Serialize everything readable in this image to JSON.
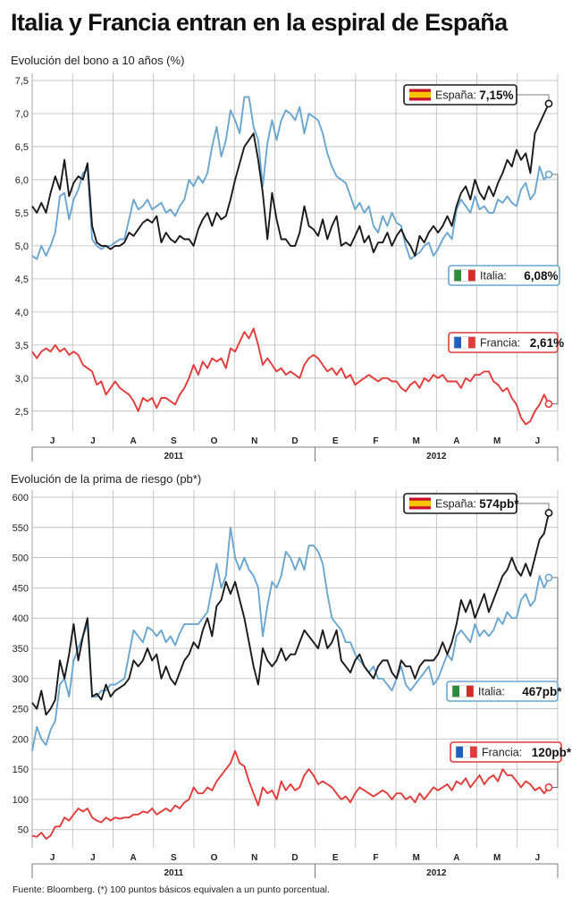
{
  "header": {
    "title": "Italia y Francia entran en la espiral de España"
  },
  "source_note": "Fuente: Bloomberg. (*) 100 puntos básicos equivalen a un punto porcentual.",
  "colors": {
    "espana": "#1a1a1a",
    "italia": "#6aa6cf",
    "francia": "#e23b3b",
    "grid": "#b9b9b9",
    "flag_spain_red": "#c8102e",
    "flag_spain_yellow": "#f6c400",
    "flag_italy_green": "#2e8b3e",
    "flag_italy_red": "#d62b2b",
    "flag_france_blue": "#1f5fbf",
    "flag_france_red": "#e23b3b"
  },
  "chart_data": [
    {
      "id": "bond",
      "type": "line",
      "title": "Evolución del bono a 10 años (%)",
      "ylim": [
        2.2,
        7.5
      ],
      "yticks": [
        "7,5",
        "7,0",
        "6,5",
        "6,0",
        "5,5",
        "5,0",
        "4,5",
        "4,0",
        "3,5",
        "3,0",
        "2,5"
      ],
      "ytick_values": [
        7.5,
        7.0,
        6.5,
        6.0,
        5.5,
        5.0,
        4.5,
        4.0,
        3.5,
        3.0,
        2.5
      ],
      "month_labels": [
        "J",
        "J",
        "A",
        "S",
        "O",
        "N",
        "D",
        "E",
        "F",
        "M",
        "A",
        "M",
        "J"
      ],
      "year_labels": [
        "2011",
        "2012"
      ],
      "grid": true,
      "series": [
        {
          "name": "España",
          "end_label": "7,15%",
          "flag": "spain",
          "legend_position": "top-right",
          "values": [
            5.6,
            5.5,
            5.65,
            5.5,
            5.8,
            6.05,
            5.85,
            6.3,
            5.75,
            5.95,
            6.05,
            6.0,
            6.25,
            5.3,
            5.05,
            5.0,
            5.0,
            4.95,
            5.0,
            5.0,
            5.05,
            5.2,
            5.15,
            5.25,
            5.35,
            5.4,
            5.35,
            5.45,
            5.05,
            5.2,
            5.1,
            5.05,
            5.15,
            5.1,
            5.1,
            5.0,
            5.25,
            5.4,
            5.5,
            5.3,
            5.5,
            5.4,
            5.45,
            5.7,
            6.0,
            6.25,
            6.5,
            6.6,
            6.7,
            6.3,
            5.8,
            5.1,
            5.8,
            5.4,
            5.1,
            5.1,
            5.0,
            5.0,
            5.2,
            5.6,
            5.3,
            5.25,
            5.15,
            5.4,
            5.1,
            5.3,
            5.45,
            5.0,
            5.05,
            5.0,
            5.15,
            5.3,
            5.05,
            5.15,
            4.9,
            5.05,
            5.05,
            5.2,
            5.0,
            5.15,
            5.25,
            5.1,
            5.0,
            4.85,
            5.15,
            5.05,
            5.2,
            5.3,
            5.2,
            5.3,
            5.45,
            5.3,
            5.6,
            5.8,
            5.9,
            5.7,
            6.0,
            5.8,
            5.7,
            5.9,
            5.75,
            5.95,
            6.1,
            6.3,
            6.2,
            6.45,
            6.3,
            6.4,
            6.1,
            6.7,
            6.85,
            7.0,
            7.15
          ]
        },
        {
          "name": "Italia",
          "end_label": "6,08%",
          "flag": "italy",
          "legend_position": "right",
          "values": [
            4.85,
            4.8,
            5.0,
            4.85,
            5.0,
            5.2,
            5.75,
            5.8,
            5.4,
            5.7,
            5.85,
            6.1,
            6.15,
            5.1,
            5.0,
            4.95,
            5.0,
            5.0,
            5.05,
            5.1,
            5.1,
            5.4,
            5.7,
            5.55,
            5.6,
            5.7,
            5.55,
            5.6,
            5.65,
            5.5,
            5.55,
            5.45,
            5.6,
            5.7,
            6.0,
            5.9,
            6.05,
            5.95,
            6.1,
            6.5,
            6.8,
            6.35,
            6.6,
            7.05,
            6.9,
            6.7,
            7.25,
            7.25,
            6.8,
            6.6,
            5.9,
            6.55,
            6.9,
            6.6,
            6.9,
            7.05,
            7.0,
            6.9,
            7.1,
            6.7,
            7.0,
            6.95,
            6.9,
            6.7,
            6.4,
            6.2,
            6.05,
            6.0,
            5.95,
            5.75,
            5.55,
            5.65,
            5.5,
            5.6,
            5.3,
            5.2,
            5.45,
            5.3,
            5.5,
            5.35,
            5.3,
            5.0,
            4.8,
            4.85,
            4.9,
            5.0,
            5.05,
            4.85,
            4.95,
            5.1,
            5.2,
            5.1,
            5.55,
            5.7,
            5.6,
            5.5,
            5.75,
            5.55,
            5.6,
            5.5,
            5.5,
            5.7,
            5.65,
            5.75,
            5.65,
            5.6,
            5.85,
            5.95,
            5.7,
            5.8,
            6.2,
            6.0,
            6.08
          ]
        },
        {
          "name": "Francia",
          "end_label": "2,61%",
          "flag": "france",
          "legend_position": "right",
          "values": [
            3.4,
            3.3,
            3.4,
            3.45,
            3.4,
            3.5,
            3.4,
            3.45,
            3.35,
            3.4,
            3.35,
            3.2,
            3.15,
            3.1,
            2.9,
            2.95,
            2.75,
            2.85,
            2.95,
            2.85,
            2.8,
            2.75,
            2.65,
            2.5,
            2.7,
            2.65,
            2.7,
            2.55,
            2.7,
            2.7,
            2.65,
            2.6,
            2.75,
            2.85,
            3.0,
            3.2,
            3.05,
            3.25,
            3.15,
            3.3,
            3.25,
            3.3,
            3.15,
            3.45,
            3.4,
            3.55,
            3.7,
            3.6,
            3.75,
            3.5,
            3.2,
            3.3,
            3.2,
            3.1,
            3.15,
            3.05,
            3.1,
            3.05,
            3.0,
            3.2,
            3.3,
            3.35,
            3.3,
            3.2,
            3.1,
            3.15,
            3.05,
            3.15,
            3.0,
            3.05,
            2.9,
            2.95,
            3.0,
            3.05,
            3.0,
            2.95,
            3.0,
            3.0,
            2.95,
            2.95,
            2.85,
            2.8,
            2.9,
            2.95,
            2.85,
            3.0,
            2.95,
            3.05,
            3.0,
            3.05,
            2.95,
            2.95,
            2.95,
            2.85,
            3.0,
            2.95,
            3.05,
            3.05,
            3.1,
            3.1,
            2.95,
            2.9,
            2.8,
            2.85,
            2.7,
            2.6,
            2.4,
            2.3,
            2.35,
            2.5,
            2.6,
            2.75,
            2.61
          ]
        }
      ]
    },
    {
      "id": "premium",
      "type": "line",
      "title": "Evolución de la prima de riesgo (pb*)",
      "ylim": [
        20,
        600
      ],
      "yticks": [
        "600",
        "550",
        "500",
        "450",
        "400",
        "350",
        "300",
        "250",
        "200",
        "150",
        "100",
        "50"
      ],
      "ytick_values": [
        600,
        550,
        500,
        450,
        400,
        350,
        300,
        250,
        200,
        150,
        100,
        50
      ],
      "month_labels": [
        "J",
        "J",
        "A",
        "S",
        "O",
        "N",
        "D",
        "E",
        "F",
        "M",
        "A",
        "M",
        "J"
      ],
      "year_labels": [
        "2011",
        "2012"
      ],
      "grid": true,
      "series": [
        {
          "name": "España",
          "end_label": "574pb*",
          "flag": "spain",
          "legend_position": "top-right",
          "values": [
            260,
            250,
            280,
            240,
            250,
            265,
            330,
            300,
            340,
            390,
            330,
            370,
            400,
            270,
            275,
            265,
            290,
            270,
            280,
            285,
            290,
            300,
            330,
            320,
            330,
            350,
            330,
            340,
            300,
            320,
            300,
            290,
            310,
            330,
            340,
            360,
            350,
            380,
            400,
            370,
            420,
            430,
            460,
            440,
            460,
            430,
            400,
            360,
            320,
            290,
            350,
            330,
            320,
            330,
            350,
            330,
            340,
            340,
            360,
            380,
            370,
            360,
            350,
            380,
            350,
            360,
            380,
            330,
            320,
            310,
            330,
            340,
            320,
            310,
            300,
            320,
            330,
            330,
            310,
            300,
            330,
            320,
            320,
            300,
            320,
            330,
            330,
            330,
            340,
            360,
            340,
            360,
            390,
            430,
            410,
            430,
            400,
            420,
            440,
            410,
            430,
            450,
            470,
            480,
            500,
            480,
            470,
            490,
            470,
            500,
            530,
            540,
            574
          ]
        },
        {
          "name": "Italia",
          "end_label": "467pb*",
          "flag": "italy",
          "legend_position": "right",
          "values": [
            180,
            220,
            200,
            190,
            215,
            230,
            290,
            300,
            270,
            330,
            350,
            370,
            390,
            270,
            270,
            280,
            280,
            290,
            290,
            295,
            300,
            340,
            380,
            370,
            360,
            385,
            380,
            370,
            380,
            360,
            370,
            355,
            375,
            390,
            390,
            390,
            390,
            400,
            410,
            450,
            490,
            450,
            470,
            550,
            500,
            480,
            500,
            480,
            470,
            450,
            370,
            420,
            460,
            450,
            470,
            510,
            500,
            480,
            500,
            480,
            520,
            520,
            510,
            490,
            440,
            400,
            390,
            380,
            360,
            360,
            340,
            330,
            320,
            310,
            320,
            300,
            300,
            290,
            280,
            300,
            320,
            290,
            280,
            290,
            300,
            310,
            320,
            290,
            300,
            320,
            340,
            330,
            370,
            380,
            370,
            360,
            390,
            370,
            380,
            370,
            380,
            400,
            390,
            410,
            400,
            400,
            430,
            440,
            420,
            430,
            470,
            450,
            467
          ]
        },
        {
          "name": "Francia",
          "end_label": "120pb*",
          "flag": "france",
          "legend_position": "right",
          "values": [
            40,
            38,
            45,
            35,
            40,
            55,
            55,
            70,
            65,
            75,
            85,
            80,
            85,
            70,
            65,
            62,
            70,
            65,
            70,
            68,
            70,
            70,
            75,
            75,
            80,
            78,
            85,
            75,
            80,
            85,
            80,
            90,
            85,
            95,
            100,
            120,
            110,
            110,
            120,
            115,
            130,
            140,
            150,
            160,
            180,
            160,
            155,
            130,
            110,
            90,
            120,
            110,
            115,
            100,
            130,
            115,
            125,
            115,
            120,
            140,
            150,
            140,
            125,
            130,
            125,
            120,
            110,
            100,
            105,
            95,
            110,
            120,
            115,
            110,
            105,
            110,
            115,
            110,
            100,
            110,
            110,
            100,
            105,
            95,
            110,
            100,
            110,
            120,
            115,
            120,
            125,
            115,
            130,
            125,
            135,
            120,
            130,
            140,
            125,
            135,
            140,
            130,
            150,
            140,
            140,
            130,
            120,
            130,
            125,
            115,
            120,
            110,
            120
          ]
        }
      ]
    }
  ]
}
